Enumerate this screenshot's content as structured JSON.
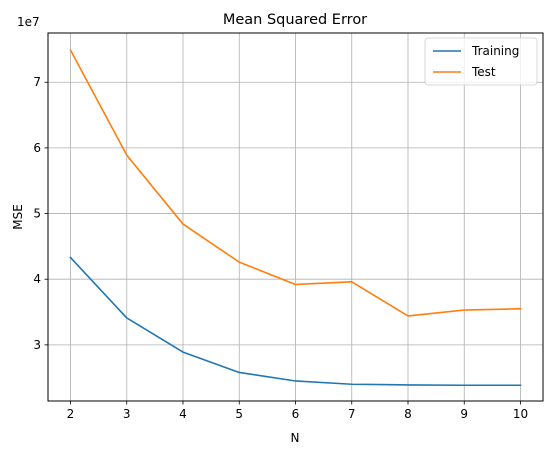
{
  "chart_data": {
    "type": "line",
    "title": "Mean Squared Error",
    "xlabel": "N",
    "ylabel": "MSE",
    "y_offset_label": "1e7",
    "x": [
      2,
      3,
      4,
      5,
      6,
      7,
      8,
      9,
      10
    ],
    "xlim": [
      1.6,
      10.4
    ],
    "ylim": [
      2.145,
      7.75
    ],
    "x_ticks": [
      2,
      3,
      4,
      5,
      6,
      7,
      8,
      9,
      10
    ],
    "y_ticks": [
      3,
      4,
      5,
      6,
      7
    ],
    "grid": true,
    "legend_position": "top-right",
    "series": [
      {
        "name": "Training",
        "color": "#1f77b4",
        "values": [
          4.33,
          3.41,
          2.89,
          2.58,
          2.45,
          2.4,
          2.39,
          2.385,
          2.385
        ]
      },
      {
        "name": "Test",
        "color": "#ff7f0e",
        "values": [
          7.49,
          5.89,
          4.84,
          4.26,
          3.92,
          3.96,
          3.44,
          3.53,
          3.55
        ]
      }
    ]
  }
}
